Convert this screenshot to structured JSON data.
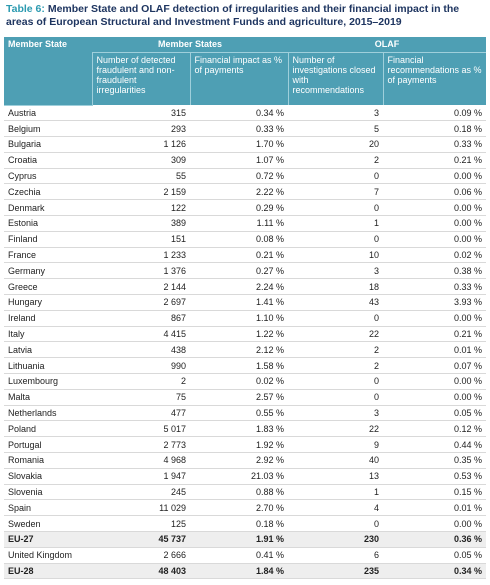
{
  "title": {
    "label": "Table 6:",
    "text": "Member State and OLAF detection of irregularities and their financial impact in the areas of European Structural and Investment Funds and agriculture, 2015–2019"
  },
  "table": {
    "group_headers": [
      "Member State",
      "Member States",
      "OLAF"
    ],
    "column_headers": [
      "Number of detected fraudulent and non-fraudulent irregularities",
      "Financial impact as % of payments",
      "Number of investigations closed with recommendations",
      "Financial recommendations as % of payments"
    ],
    "rows": [
      [
        "Austria",
        "315",
        "0.34 %",
        "3",
        "0.09 %"
      ],
      [
        "Belgium",
        "293",
        "0.33 %",
        "5",
        "0.18 %"
      ],
      [
        "Bulgaria",
        "1 126",
        "1.70 %",
        "20",
        "0.33 %"
      ],
      [
        "Croatia",
        "309",
        "1.07 %",
        "2",
        "0.21 %"
      ],
      [
        "Cyprus",
        "55",
        "0.72 %",
        "0",
        "0.00 %"
      ],
      [
        "Czechia",
        "2 159",
        "2.22 %",
        "7",
        "0.06 %"
      ],
      [
        "Denmark",
        "122",
        "0.29 %",
        "0",
        "0.00 %"
      ],
      [
        "Estonia",
        "389",
        "1.11 %",
        "1",
        "0.00 %"
      ],
      [
        "Finland",
        "151",
        "0.08 %",
        "0",
        "0.00 %"
      ],
      [
        "France",
        "1 233",
        "0.21 %",
        "10",
        "0.02 %"
      ],
      [
        "Germany",
        "1 376",
        "0.27 %",
        "3",
        "0.38 %"
      ],
      [
        "Greece",
        "2 144",
        "2.24 %",
        "18",
        "0.33 %"
      ],
      [
        "Hungary",
        "2 697",
        "1.41 %",
        "43",
        "3.93 %"
      ],
      [
        "Ireland",
        "867",
        "1.10 %",
        "0",
        "0.00 %"
      ],
      [
        "Italy",
        "4 415",
        "1.22 %",
        "22",
        "0.21 %"
      ],
      [
        "Latvia",
        "438",
        "2.12 %",
        "2",
        "0.01 %"
      ],
      [
        "Lithuania",
        "990",
        "1.58 %",
        "2",
        "0.07 %"
      ],
      [
        "Luxembourg",
        "2",
        "0.02 %",
        "0",
        "0.00 %"
      ],
      [
        "Malta",
        "75",
        "2.57 %",
        "0",
        "0.00 %"
      ],
      [
        "Netherlands",
        "477",
        "0.55 %",
        "3",
        "0.05 %"
      ],
      [
        "Poland",
        "5 017",
        "1.83 %",
        "22",
        "0.12 %"
      ],
      [
        "Portugal",
        "2 773",
        "1.92 %",
        "9",
        "0.44 %"
      ],
      [
        "Romania",
        "4 968",
        "2.92 %",
        "40",
        "0.35 %"
      ],
      [
        "Slovakia",
        "1 947",
        "21.03 %",
        "13",
        "0.53 %"
      ],
      [
        "Slovenia",
        "245",
        "0.88 %",
        "1",
        "0.15 %"
      ],
      [
        "Spain",
        "11 029",
        "2.70 %",
        "4",
        "0.01 %"
      ],
      [
        "Sweden",
        "125",
        "0.18 %",
        "0",
        "0.00 %"
      ],
      [
        "EU-27",
        "45 737",
        "1.91 %",
        "230",
        "0.36 %"
      ],
      [
        "United Kingdom",
        "2 666",
        "0.41 %",
        "6",
        "0.05 %"
      ],
      [
        "EU-28",
        "48 403",
        "1.84 %",
        "235",
        "0.34 %"
      ]
    ],
    "bold_rows": [
      27,
      29
    ]
  }
}
